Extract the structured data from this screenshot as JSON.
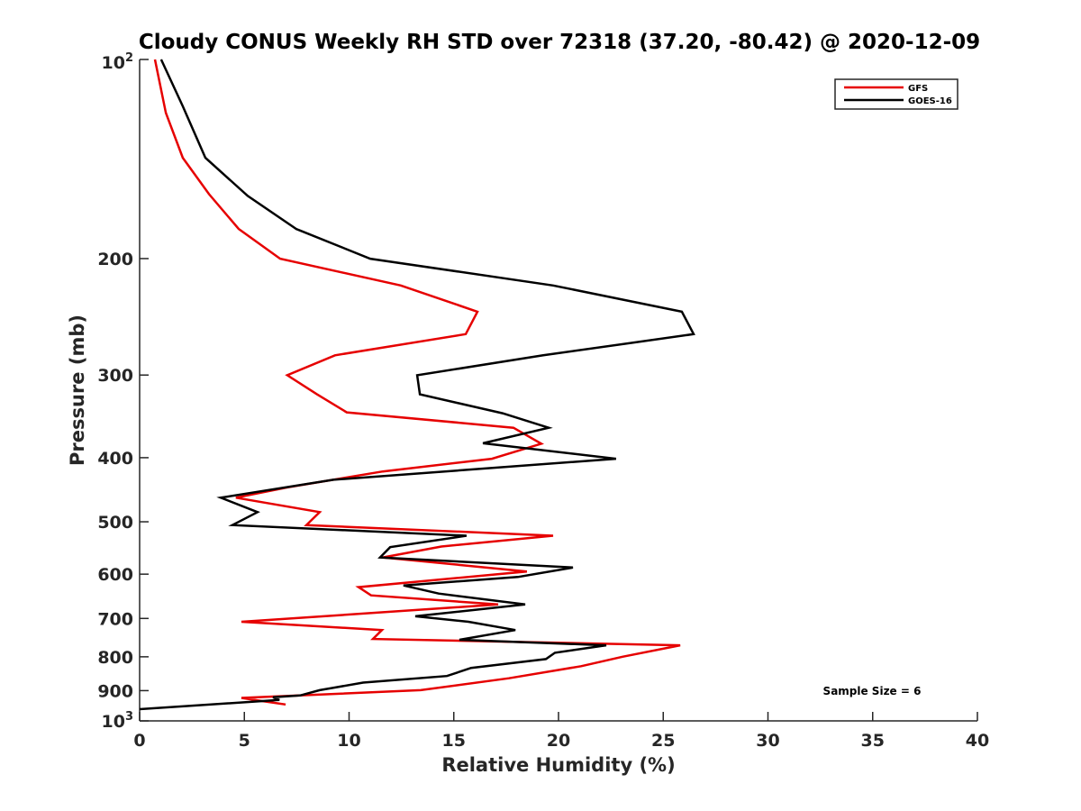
{
  "chart_data": {
    "type": "line",
    "title": "Cloudy CONUS Weekly RH STD over 72318 (37.20, -80.42) @ 2020-12-09",
    "xlabel": "Relative Humidity (%)",
    "ylabel": "Pressure (mb)",
    "xlim": [
      0,
      40
    ],
    "ylim": [
      100,
      1000
    ],
    "y_scale": "log",
    "y_reversed": true,
    "grid": false,
    "x_ticks": [
      0,
      5,
      10,
      15,
      20,
      25,
      30,
      35,
      40
    ],
    "x_tick_labels": [
      "0",
      "5",
      "10",
      "15",
      "20",
      "25",
      "30",
      "35",
      "40"
    ],
    "y_ticks": [
      100,
      200,
      300,
      400,
      500,
      600,
      700,
      800,
      900,
      1000
    ],
    "y_tick_labels": [
      "10",
      "200",
      "300",
      "400",
      "500",
      "600",
      "700",
      "800",
      "900",
      "10"
    ],
    "y_tick_superscripts": [
      "2",
      "",
      "",
      "",
      "",
      "",
      "",
      "",
      "",
      "3"
    ],
    "legend": {
      "placement": "top-right",
      "entries": [
        "GFS",
        "GOES-16"
      ]
    },
    "annotation": "Sample Size = 6",
    "series": [
      {
        "name": "GFS",
        "color": "#e60000",
        "points": [
          [
            0.73,
            100
          ],
          [
            1.25,
            120.4
          ],
          [
            2.06,
            140.8
          ],
          [
            3.31,
            159.8
          ],
          [
            4.73,
            180.4
          ],
          [
            6.71,
            200.1
          ],
          [
            12.47,
            219.6
          ],
          [
            16.13,
            240.6
          ],
          [
            15.57,
            260.2
          ],
          [
            9.33,
            280.1
          ],
          [
            7.05,
            300.2
          ],
          [
            8.47,
            320.8
          ],
          [
            9.89,
            341.6
          ],
          [
            17.85,
            360.4
          ],
          [
            19.18,
            381.0
          ],
          [
            16.82,
            401.5
          ],
          [
            11.61,
            419.7
          ],
          [
            7.05,
            443.6
          ],
          [
            4.6,
            459.8
          ],
          [
            8.6,
            483.5
          ],
          [
            7.96,
            505.8
          ],
          [
            19.74,
            524.9
          ],
          [
            14.41,
            545.0
          ],
          [
            11.61,
            566.1
          ],
          [
            18.49,
            594.5
          ],
          [
            10.45,
            627.8
          ],
          [
            11.05,
            646.0
          ],
          [
            17.12,
            666.7
          ],
          [
            4.86,
            708.2
          ],
          [
            11.57,
            728.9
          ],
          [
            11.14,
            751.8
          ],
          [
            25.81,
            768.7
          ],
          [
            23.06,
            799.9
          ],
          [
            21.08,
            826.6
          ],
          [
            17.63,
            862.1
          ],
          [
            13.42,
            898.6
          ],
          [
            4.86,
            923.0
          ],
          [
            5.89,
            933.7
          ],
          [
            6.97,
            944.4
          ]
        ]
      },
      {
        "name": "GOES-16",
        "color": "#000000",
        "points": [
          [
            1.03,
            100
          ],
          [
            2.06,
            117.7
          ],
          [
            3.14,
            140.8
          ],
          [
            5.16,
            160.8
          ],
          [
            7.48,
            180.4
          ],
          [
            11.01,
            200.1
          ],
          [
            19.74,
            219.6
          ],
          [
            25.89,
            240.6
          ],
          [
            26.45,
            260.2
          ],
          [
            19.27,
            280.1
          ],
          [
            13.25,
            300.2
          ],
          [
            13.38,
            320.8
          ],
          [
            17.33,
            342.7
          ],
          [
            19.53,
            360.4
          ],
          [
            16.39,
            380.4
          ],
          [
            22.75,
            401.5
          ],
          [
            9.25,
            432.0
          ],
          [
            3.87,
            459.8
          ],
          [
            5.63,
            483.5
          ],
          [
            4.43,
            505.8
          ],
          [
            15.61,
            524.9
          ],
          [
            11.96,
            546.2
          ],
          [
            11.48,
            566.1
          ],
          [
            20.69,
            586.3
          ],
          [
            18.06,
            606.0
          ],
          [
            12.6,
            624.0
          ],
          [
            14.28,
            642.0
          ],
          [
            18.41,
            666.7
          ],
          [
            13.16,
            694.8
          ],
          [
            15.7,
            708.2
          ],
          [
            17.94,
            728.9
          ],
          [
            15.27,
            754.1
          ],
          [
            22.28,
            768.7
          ],
          [
            19.83,
            788.8
          ],
          [
            19.4,
            806.3
          ],
          [
            15.83,
            831.6
          ],
          [
            14.67,
            855.4
          ],
          [
            10.67,
            875.1
          ],
          [
            8.6,
            898.6
          ],
          [
            7.66,
            915.4
          ],
          [
            6.37,
            921.1
          ],
          [
            6.67,
            929.8
          ],
          [
            0.0,
            960.0
          ]
        ]
      }
    ]
  }
}
